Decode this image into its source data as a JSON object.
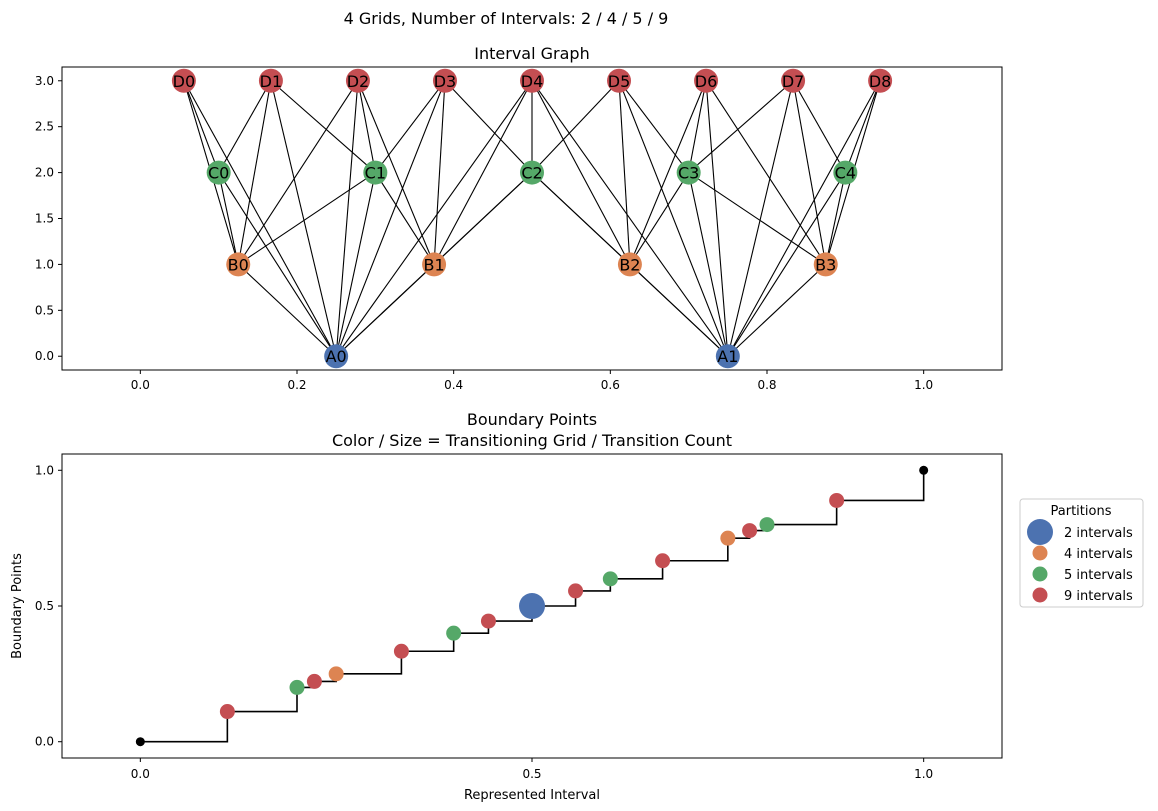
{
  "figure_title": "4 Grids, Number of Intervals: 2 / 4 / 5 / 9",
  "chart_data": [
    {
      "type": "network",
      "title": "Interval Graph",
      "xlim": [
        -0.1,
        1.1
      ],
      "ylim": [
        -0.15,
        3.15
      ],
      "x_ticks": [
        "0.0",
        "0.2",
        "0.4",
        "0.6",
        "0.8",
        "1.0"
      ],
      "y_ticks": [
        "0.0",
        "0.5",
        "1.0",
        "1.5",
        "2.0",
        "2.5",
        "3.0"
      ],
      "levels": [
        {
          "prefix": "A",
          "y": 0,
          "count": 2,
          "color": "#4c72b0"
        },
        {
          "prefix": "B",
          "y": 1,
          "count": 4,
          "color": "#dd8452"
        },
        {
          "prefix": "C",
          "y": 2,
          "count": 5,
          "color": "#55a868"
        },
        {
          "prefix": "D",
          "y": 3,
          "count": 9,
          "color": "#c44e52"
        }
      ],
      "nodes": [
        {
          "label": "A0",
          "x": 0.25,
          "y": 0
        },
        {
          "label": "A1",
          "x": 0.75,
          "y": 0
        },
        {
          "label": "B0",
          "x": 0.125,
          "y": 1
        },
        {
          "label": "B1",
          "x": 0.375,
          "y": 1
        },
        {
          "label": "B2",
          "x": 0.625,
          "y": 1
        },
        {
          "label": "B3",
          "x": 0.875,
          "y": 1
        },
        {
          "label": "C0",
          "x": 0.1,
          "y": 2
        },
        {
          "label": "C1",
          "x": 0.3,
          "y": 2
        },
        {
          "label": "C2",
          "x": 0.5,
          "y": 2
        },
        {
          "label": "C3",
          "x": 0.7,
          "y": 2
        },
        {
          "label": "C4",
          "x": 0.9,
          "y": 2
        },
        {
          "label": "D0",
          "x": 0.0556,
          "y": 3
        },
        {
          "label": "D1",
          "x": 0.1667,
          "y": 3
        },
        {
          "label": "D2",
          "x": 0.2778,
          "y": 3
        },
        {
          "label": "D3",
          "x": 0.3889,
          "y": 3
        },
        {
          "label": "D4",
          "x": 0.5,
          "y": 3
        },
        {
          "label": "D5",
          "x": 0.6111,
          "y": 3
        },
        {
          "label": "D6",
          "x": 0.7222,
          "y": 3
        },
        {
          "label": "D7",
          "x": 0.8333,
          "y": 3
        },
        {
          "label": "D8",
          "x": 0.9444,
          "y": 3
        }
      ]
    },
    {
      "type": "scatter",
      "title": "Boundary Points",
      "subtitle": "Color / Size = Transitioning Grid / Transition Count",
      "xlabel": "Represented Interval",
      "ylabel": "Boundary Points",
      "xlim": [
        -0.2,
        2.2
      ],
      "ylim": [
        -0.06,
        1.06
      ],
      "x_ticks": [
        {
          "pos": 0,
          "label": "0.0"
        },
        {
          "pos": 1,
          "label": "0.5"
        },
        {
          "pos": 2,
          "label": "1.0"
        }
      ],
      "y_ticks": [
        {
          "pos": 0,
          "label": "0.0"
        },
        {
          "pos": 0.5,
          "label": "0.5"
        },
        {
          "pos": 1,
          "label": "1.0"
        }
      ],
      "boundaries": [
        0,
        0.1111,
        0.2,
        0.2222,
        0.25,
        0.3333,
        0.4,
        0.4444,
        0.5,
        0.5556,
        0.6,
        0.6667,
        0.75,
        0.7778,
        0.8,
        0.8889,
        1.0
      ],
      "legend": {
        "title": "Partitions",
        "position": "right",
        "entries": [
          {
            "label": "2 intervals",
            "color": "#4c72b0",
            "size": "large"
          },
          {
            "label": "4 intervals",
            "color": "#dd8452",
            "size": "small"
          },
          {
            "label": "5 intervals",
            "color": "#55a868",
            "size": "small"
          },
          {
            "label": "9 intervals",
            "color": "#c44e52",
            "size": "small"
          }
        ]
      }
    }
  ]
}
